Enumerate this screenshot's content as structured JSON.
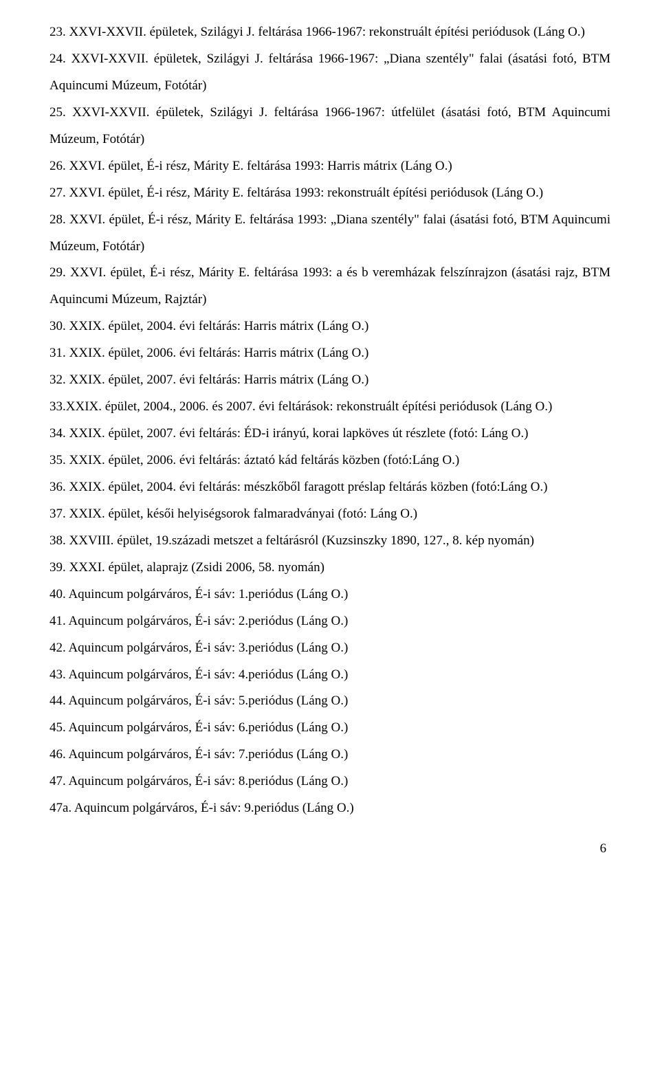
{
  "page": {
    "number": "6",
    "text_color": "#000000",
    "bg_color": "#ffffff",
    "font_family": "Times New Roman",
    "font_size_pt": 14
  },
  "entries": [
    "23. XXVI-XXVII. épületek, Szilágyi J. feltárása 1966-1967: rekonstruált építési periódusok (Láng O.)",
    "24. XXVI-XXVII. épületek, Szilágyi J. feltárása 1966-1967: „Diana szentély\" falai (ásatási fotó, BTM Aquincumi Múzeum, Fotótár)",
    "25. XXVI-XXVII. épületek, Szilágyi J. feltárása 1966-1967: útfelület (ásatási fotó, BTM Aquincumi Múzeum, Fotótár)",
    "26. XXVI. épület, É-i rész, Márity E. feltárása 1993: Harris mátrix (Láng O.)",
    "27. XXVI. épület, É-i rész, Márity E. feltárása 1993: rekonstruált építési periódusok (Láng O.)",
    "28. XXVI. épület, É-i rész, Márity E. feltárása 1993: „Diana szentély\" falai (ásatási fotó, BTM Aquincumi Múzeum, Fotótár)",
    "29. XXVI. épület, É-i rész, Márity E. feltárása 1993: a és b veremházak felszínrajzon (ásatási rajz, BTM Aquincumi Múzeum, Rajztár)",
    "30. XXIX. épület, 2004. évi feltárás: Harris mátrix (Láng O.)",
    "31. XXIX. épület, 2006. évi feltárás: Harris mátrix (Láng O.)",
    "32. XXIX. épület, 2007. évi feltárás: Harris mátrix (Láng O.)",
    "33.XXIX. épület, 2004., 2006. és 2007. évi feltárások: rekonstruált építési periódusok (Láng O.)",
    "34. XXIX. épület, 2007. évi feltárás: ÉD-i irányú, korai lapköves út részlete (fotó: Láng O.)",
    "35. XXIX. épület, 2006. évi feltárás: áztató kád feltárás közben (fotó:Láng O.)",
    "36. XXIX. épület, 2004. évi feltárás: mészkőből faragott préslap feltárás közben (fotó:Láng O.)",
    "37. XXIX. épület, késői helyiségsorok falmaradványai (fotó: Láng O.)",
    "38. XXVIII. épület, 19.századi metszet a feltárásról (Kuzsinszky 1890, 127., 8. kép nyomán)",
    "39. XXXI. épület, alaprajz (Zsidi 2006, 58. nyomán)",
    "40. Aquincum polgárváros, É-i sáv: 1.periódus (Láng O.)",
    "41. Aquincum polgárváros, É-i sáv: 2.periódus (Láng O.)",
    "42. Aquincum polgárváros, É-i sáv: 3.periódus (Láng O.)",
    "43. Aquincum polgárváros, É-i sáv: 4.periódus (Láng O.)",
    "44. Aquincum polgárváros, É-i sáv: 5.periódus (Láng O.)",
    "45. Aquincum polgárváros, É-i sáv: 6.periódus (Láng O.)",
    "46. Aquincum polgárváros, É-i sáv: 7.periódus (Láng O.)",
    "47. Aquincum polgárváros, É-i sáv: 8.periódus (Láng O.)",
    "47a. Aquincum polgárváros, É-i sáv: 9.periódus (Láng O.)"
  ]
}
